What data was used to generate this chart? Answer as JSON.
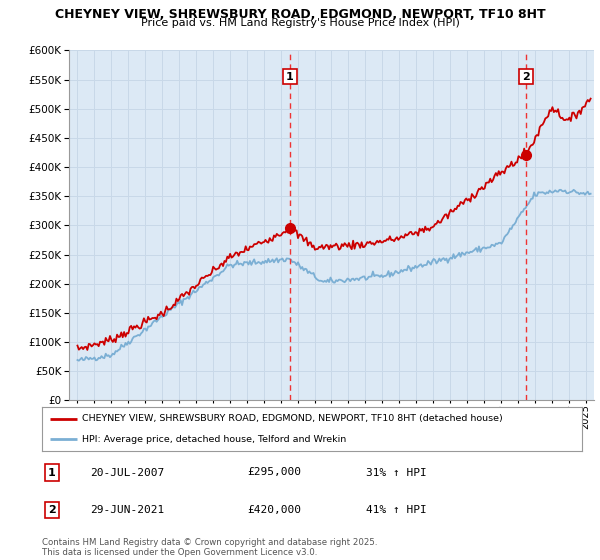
{
  "title_line1": "CHEYNEY VIEW, SHREWSBURY ROAD, EDGMOND, NEWPORT, TF10 8HT",
  "title_line2": "Price paid vs. HM Land Registry's House Price Index (HPI)",
  "ylim": [
    0,
    600000
  ],
  "yticks": [
    0,
    50000,
    100000,
    150000,
    200000,
    250000,
    300000,
    350000,
    400000,
    450000,
    500000,
    550000,
    600000
  ],
  "xlim_start": 1994.5,
  "xlim_end": 2025.5,
  "sale1_x": 2007.55,
  "sale1_y": 295000,
  "sale1_label": "1",
  "sale2_x": 2021.49,
  "sale2_y": 420000,
  "sale2_label": "2",
  "sale_color": "#cc0000",
  "hpi_color": "#7bafd4",
  "vline_color": "#ee3333",
  "plot_bg_color": "#dce9f5",
  "legend_label_red": "CHEYNEY VIEW, SHREWSBURY ROAD, EDGMOND, NEWPORT, TF10 8HT (detached house)",
  "legend_label_blue": "HPI: Average price, detached house, Telford and Wrekin",
  "annotation1_date": "20-JUL-2007",
  "annotation1_price": "£295,000",
  "annotation1_hpi": "31% ↑ HPI",
  "annotation2_date": "29-JUN-2021",
  "annotation2_price": "£420,000",
  "annotation2_hpi": "41% ↑ HPI",
  "footer": "Contains HM Land Registry data © Crown copyright and database right 2025.\nThis data is licensed under the Open Government Licence v3.0.",
  "bg_color": "#ffffff",
  "grid_color": "#c8d8e8"
}
